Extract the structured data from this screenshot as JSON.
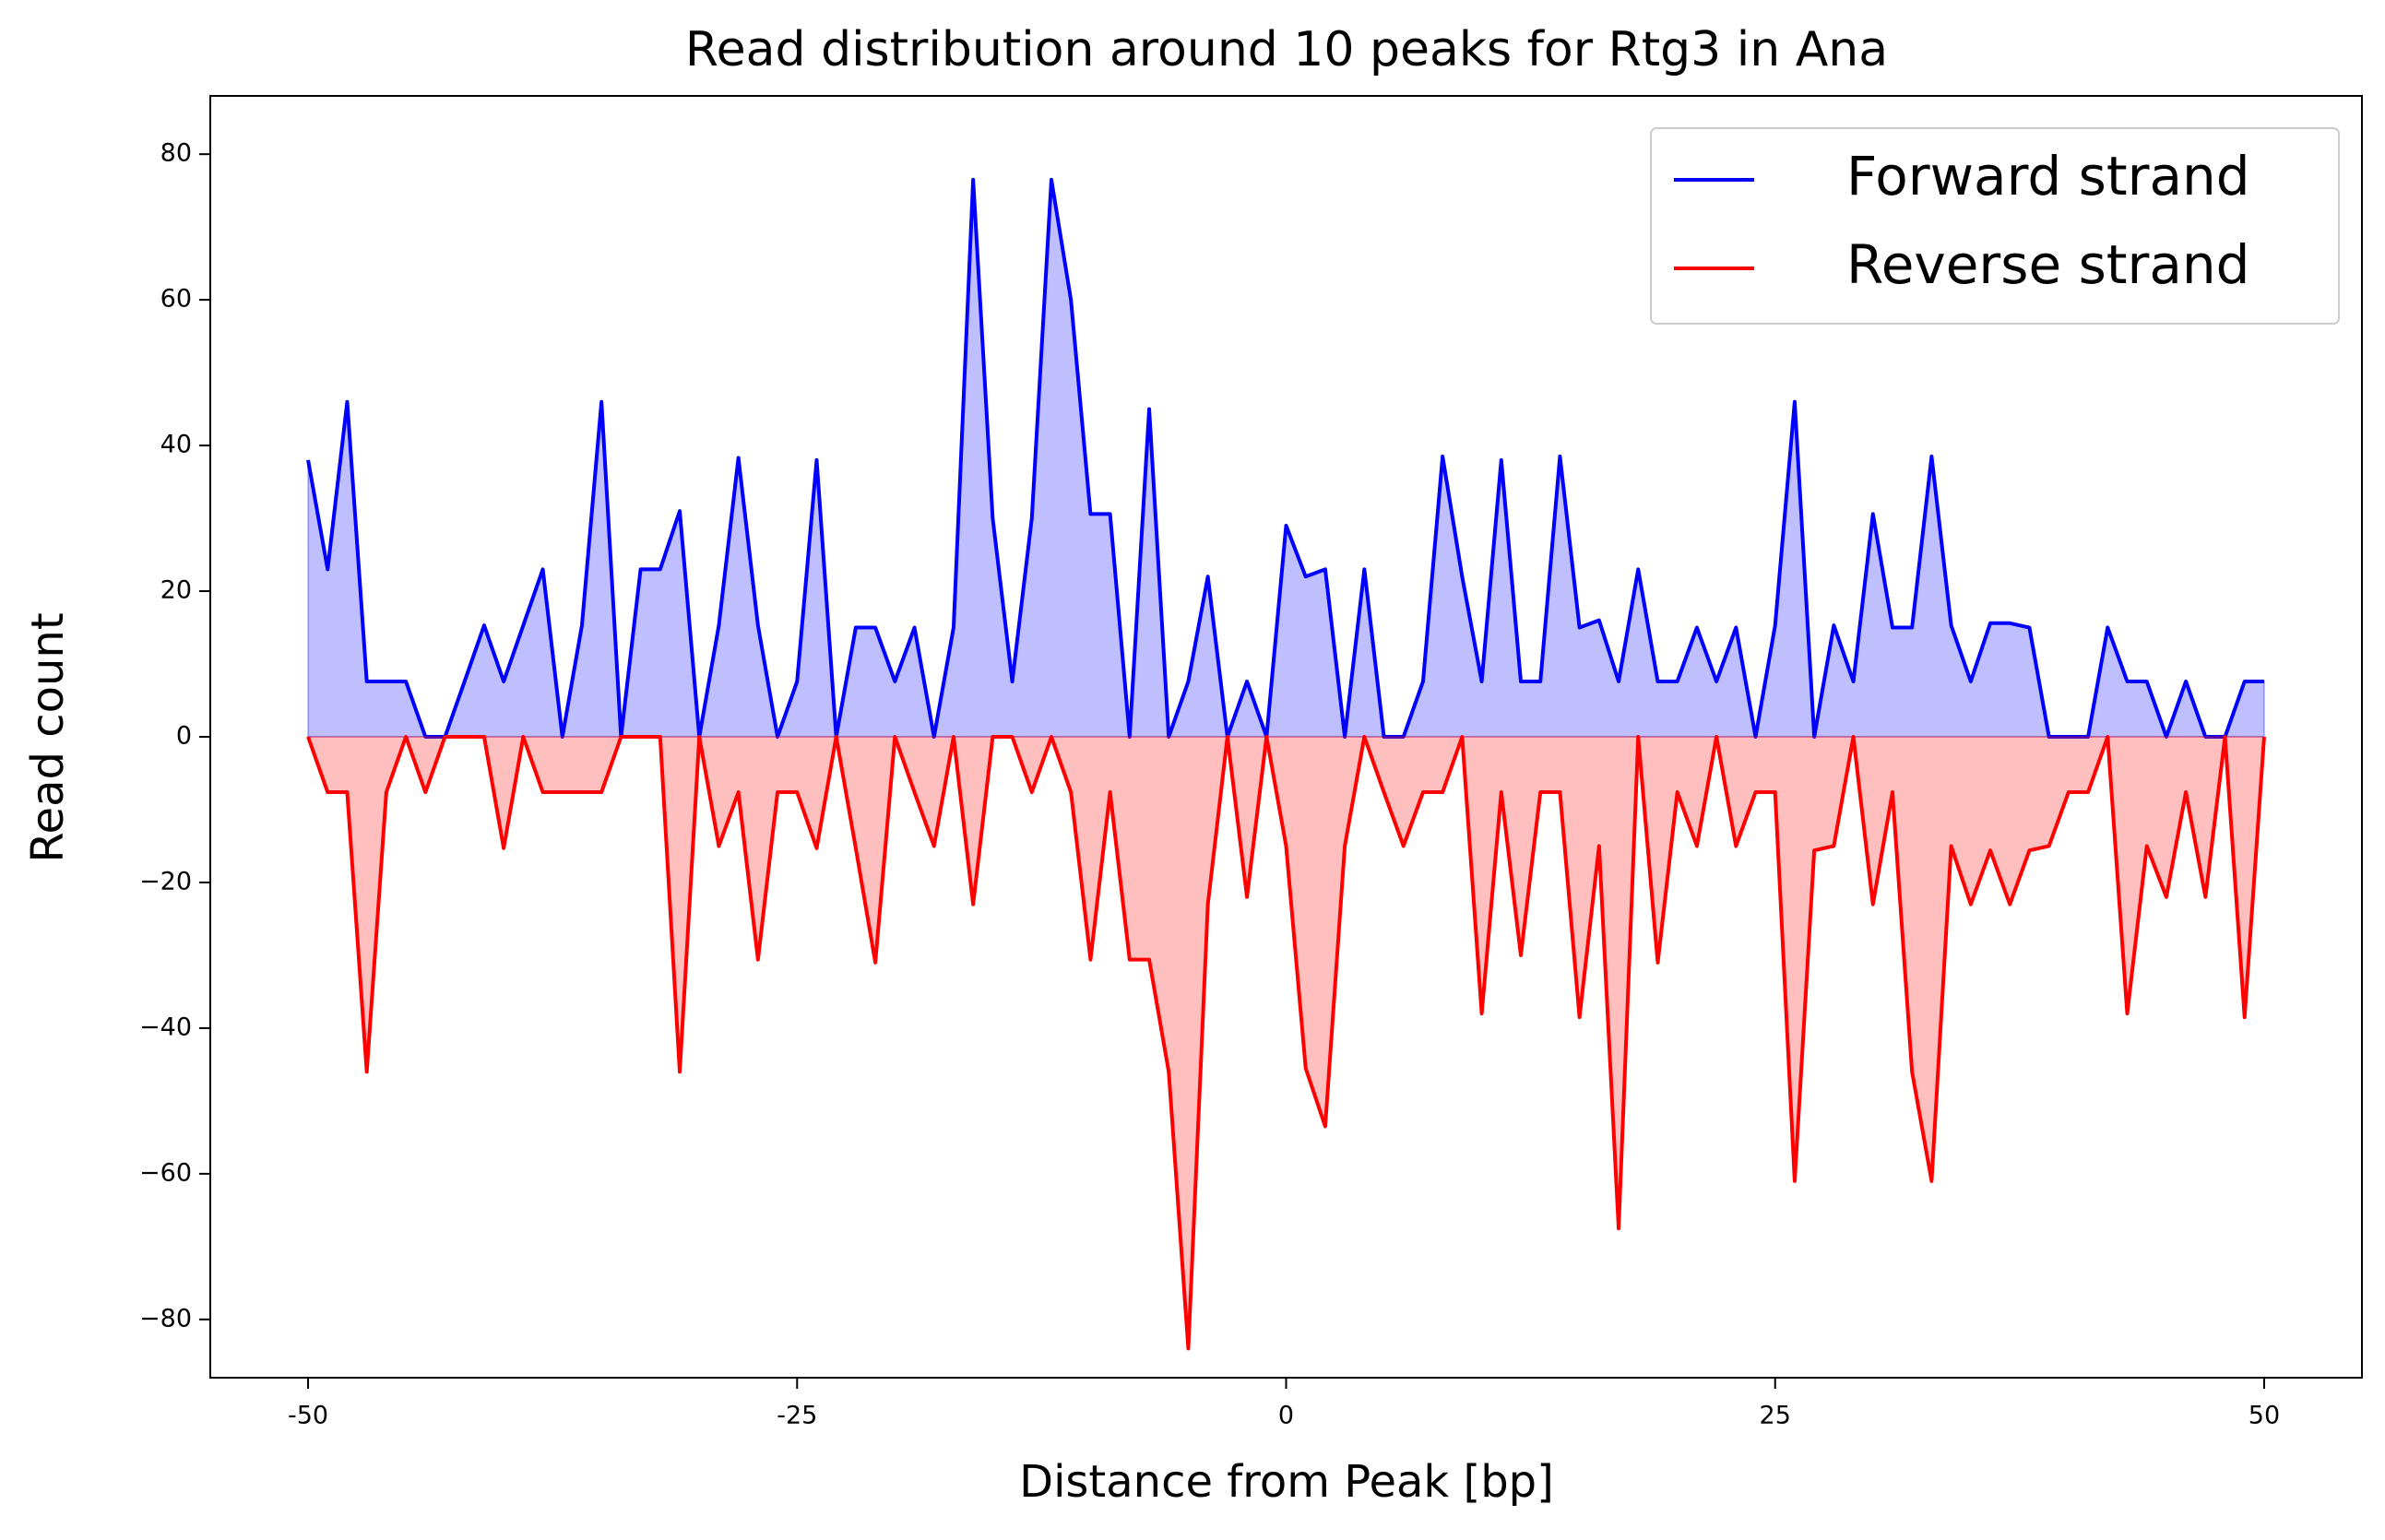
{
  "chart_data": {
    "type": "line",
    "title": "Read distribution around 10 peaks for Rtg3 in Ana",
    "xlabel": "Distance from Peak [bp]",
    "ylabel": "Read count",
    "x": [
      -50,
      -49,
      -48,
      -47,
      -46,
      -45,
      -44,
      -43,
      -42,
      -41,
      -40,
      -39,
      -38,
      -37,
      -36,
      -35,
      -34,
      -33,
      -32,
      -31,
      -30,
      -29,
      -28,
      -27,
      -26,
      -25,
      -24,
      -23,
      -22,
      -21,
      -20,
      -19,
      -18,
      -17,
      -16,
      -15,
      -14,
      -13,
      -12,
      -11,
      -10,
      -9,
      -8,
      -7,
      -6,
      -5,
      -4,
      -3,
      -2,
      -1,
      0,
      1,
      2,
      3,
      4,
      5,
      6,
      7,
      8,
      9,
      10,
      11,
      12,
      13,
      14,
      15,
      16,
      17,
      18,
      19,
      20,
      21,
      22,
      23,
      24,
      25,
      26,
      27,
      28,
      29,
      30,
      31,
      32,
      33,
      34,
      35,
      36,
      37,
      38,
      39,
      40,
      41,
      42,
      43,
      44,
      45,
      46,
      47,
      48,
      49,
      50
    ],
    "series": [
      {
        "name": "Forward strand",
        "color": "#0000ff",
        "values": [
          38,
          23,
          46,
          7.6,
          7.6,
          7.6,
          0,
          0,
          7.6,
          15.3,
          7.6,
          15.3,
          23,
          0,
          15.3,
          46,
          0,
          23,
          23,
          31,
          0,
          15.3,
          38.3,
          15.3,
          0,
          7.6,
          38,
          0,
          15,
          15,
          7.6,
          15,
          0,
          15,
          76.5,
          30,
          7.6,
          30,
          76.5,
          60,
          30.6,
          30.6,
          0,
          45,
          0,
          7.6,
          22,
          0,
          7.6,
          0,
          29,
          22,
          23,
          0,
          23,
          0,
          0,
          7.6,
          38.5,
          22,
          7.6,
          38,
          7.6,
          7.6,
          38.5,
          15,
          16,
          7.6,
          23,
          7.6,
          7.6,
          15,
          7.6,
          15,
          0,
          15.3,
          46,
          0,
          15.3,
          7.6,
          30.6,
          15,
          15,
          38.5,
          15.3,
          7.6,
          15.6,
          15.6,
          15,
          0,
          0,
          0,
          15,
          7.6,
          7.6,
          0,
          7.6,
          0,
          0,
          7.6,
          7.6
        ]
      },
      {
        "name": "Reverse strand",
        "color": "#ff0000",
        "values": [
          0,
          -7.6,
          -7.6,
          -46,
          -7.6,
          0,
          -7.6,
          0,
          0,
          0,
          -15.3,
          0,
          -7.6,
          -7.6,
          -7.6,
          -7.6,
          0,
          0,
          0,
          -46,
          0,
          -15,
          -7.6,
          -30.6,
          -7.6,
          -7.6,
          -15.3,
          0,
          -15.3,
          -31,
          0,
          -7.6,
          -15,
          0,
          -23,
          0,
          0,
          -7.6,
          0,
          -7.6,
          -30.6,
          -7.6,
          -30.6,
          -30.6,
          -46,
          -84,
          -23,
          0,
          -22,
          0,
          -15,
          -45.5,
          -53.5,
          -15,
          0,
          -7.6,
          -15,
          -7.6,
          -7.6,
          0,
          -38,
          -7.6,
          -30,
          -7.6,
          -7.6,
          -38.5,
          -15,
          -67.5,
          0,
          -31,
          -7.6,
          -15,
          0,
          -15,
          -7.6,
          -7.6,
          -61,
          -15.6,
          -15,
          0,
          -23,
          -7.6,
          -46,
          -61,
          -15,
          -23,
          -15.6,
          -23,
          -15.6,
          -15,
          -7.6,
          -7.6,
          0,
          -38,
          -15,
          -22,
          -7.6,
          -22,
          0,
          -38.5,
          0
        ]
      }
    ],
    "xlim": [
      -55,
      55
    ],
    "ylim": [
      -88,
      88
    ],
    "xticks": [
      -50,
      -25,
      0,
      25,
      50
    ],
    "yticks": [
      {
        "value": -80,
        "label": "−80"
      },
      {
        "value": -60,
        "label": "−60"
      },
      {
        "value": -40,
        "label": "−40"
      },
      {
        "value": -20,
        "label": "−20"
      },
      0,
      20,
      40,
      60,
      80
    ],
    "fill": true,
    "legend": "upper right"
  }
}
